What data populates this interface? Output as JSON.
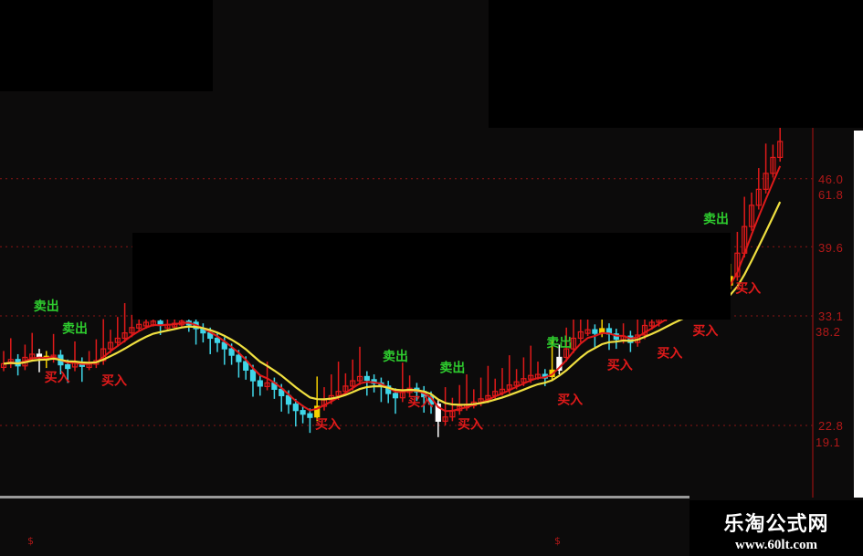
{
  "chart_data": {
    "type": "candlestick",
    "title": "",
    "xlabel": "",
    "ylabel": "",
    "ylim": [
      17.5,
      50.5
    ],
    "grid": "horizontal dotted",
    "axis_labels": [
      {
        "price": "46.0",
        "fib": "61.8"
      },
      {
        "price": "39.6",
        "fib": ""
      },
      {
        "price": "33.1",
        "fib": "38.2"
      },
      {
        "price": "22.8",
        "fib": "19.1"
      }
    ],
    "grid_levels": [
      46.0,
      39.6,
      33.1,
      22.8
    ],
    "closes": [
      28.6,
      29.0,
      28.4,
      29.2,
      29.5,
      29.3,
      29.1,
      29.4,
      28.5,
      28.3,
      28.7,
      28.4,
      28.6,
      28.9,
      30.0,
      30.6,
      31.0,
      31.5,
      32.0,
      32.3,
      32.5,
      32.6,
      32.2,
      32.3,
      32.4,
      32.6,
      32.5,
      31.9,
      31.5,
      31.0,
      30.6,
      30.0,
      29.4,
      28.8,
      28.0,
      27.0,
      26.5,
      26.8,
      26.2,
      25.6,
      24.8,
      24.2,
      23.9,
      23.6,
      24.6,
      25.2,
      25.6,
      26.0,
      26.5,
      27.0,
      27.4,
      27.1,
      26.8,
      26.5,
      25.8,
      25.4,
      25.9,
      26.3,
      26.0,
      25.5,
      24.8,
      23.2,
      23.6,
      24.2,
      24.6,
      24.8,
      25.0,
      25.3,
      25.6,
      26.0,
      26.2,
      26.6,
      26.9,
      27.2,
      27.5,
      27.6,
      27.4,
      28.0,
      29.2,
      30.0,
      31.0,
      31.6,
      31.8,
      31.5,
      31.9,
      31.4,
      30.9,
      31.2,
      30.6,
      31.3,
      32.2,
      32.5,
      33.0,
      33.4,
      33.8,
      34.0,
      34.3,
      34.6,
      34.9,
      35.2,
      35.6,
      36.0,
      36.8,
      39.0,
      41.5,
      43.5,
      45.0,
      46.5,
      48.0,
      49.5
    ],
    "highlight_candles": {
      "white": [
        5,
        61,
        78
      ],
      "yellow": [
        6,
        44,
        77,
        84,
        102
      ]
    },
    "series": [
      {
        "kind": "fast-average",
        "color": "#e01a1a"
      },
      {
        "kind": "slow-average",
        "color": "#f0e040"
      }
    ],
    "signals": {
      "sell": [
        {
          "i": 6,
          "price": 33.6
        },
        {
          "i": 10,
          "price": 31.5
        },
        {
          "i": 55,
          "price": 28.9
        },
        {
          "i": 63,
          "price": 27.8
        },
        {
          "i": 78,
          "price": 30.2
        },
        {
          "i": 100,
          "price": 41.8
        }
      ],
      "buy": [
        {
          "i": 7,
          "price": 26.9
        },
        {
          "i": 15,
          "price": 26.6
        },
        {
          "i": 45,
          "price": 22.5
        },
        {
          "i": 58,
          "price": 24.6
        },
        {
          "i": 65,
          "price": 22.5
        },
        {
          "i": 79,
          "price": 24.8
        },
        {
          "i": 86,
          "price": 28.1
        },
        {
          "i": 93,
          "price": 29.2
        },
        {
          "i": 98,
          "price": 31.3
        },
        {
          "i": 104,
          "price": 35.3
        }
      ]
    },
    "sell_label": "卖出",
    "buy_label": "买入",
    "colors": {
      "up": "#e01a1a",
      "down": "#3fd6e8",
      "sell": "#2ecc2e",
      "buy": "#e01a1a",
      "grid": "#8a1414"
    }
  },
  "bottom_markers": [
    "$",
    "$"
  ],
  "watermark": {
    "name": "乐淘公式网",
    "url": "www.60lt.com"
  }
}
